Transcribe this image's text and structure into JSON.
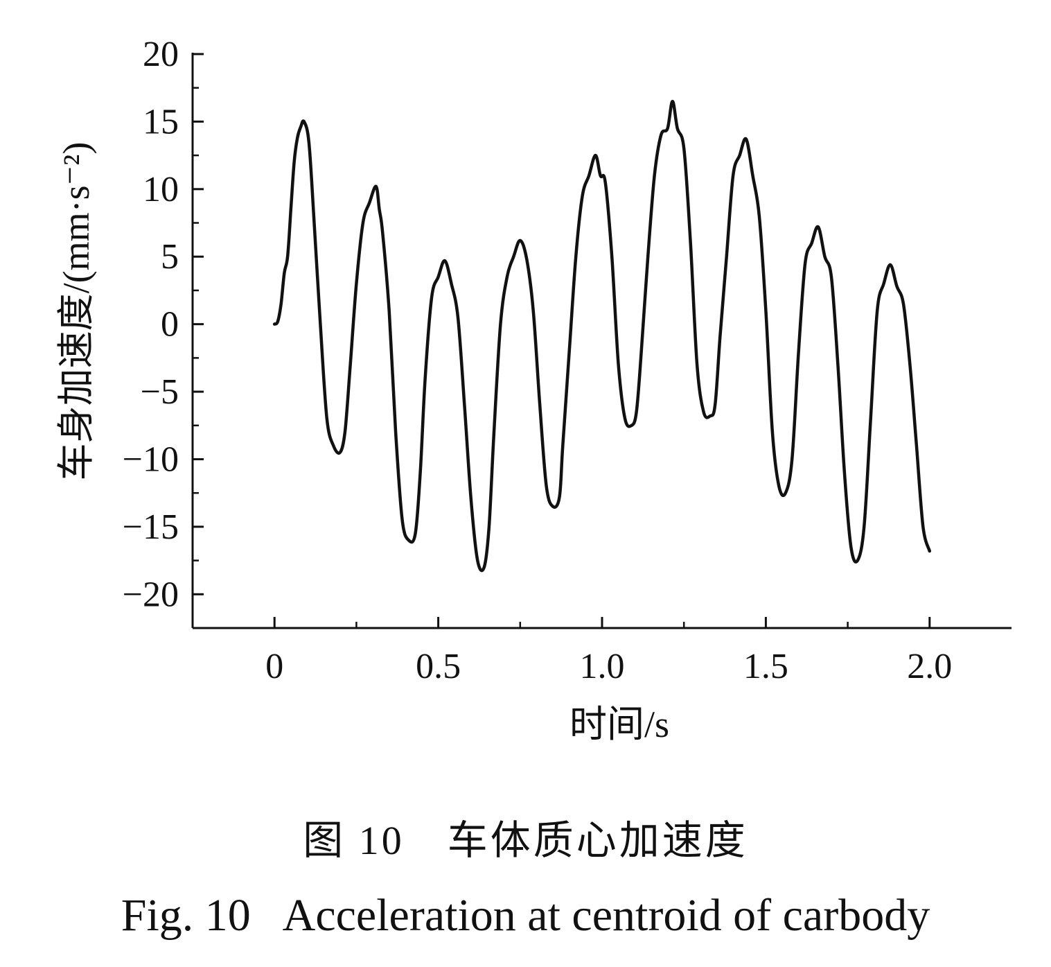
{
  "chart_data": {
    "type": "line",
    "xlabel": "时间/s",
    "ylabel": "车身加速度/(mm·s⁻²)",
    "xlim": [
      -0.25,
      2.25
    ],
    "ylim": [
      -22.5,
      20
    ],
    "x_ticks": [
      0,
      0.5,
      1.0,
      1.5,
      2.0
    ],
    "x_tick_labels": [
      "0",
      "0.5",
      "1.0",
      "1.5",
      "2.0"
    ],
    "y_ticks": [
      20,
      15,
      10,
      5,
      0,
      -5,
      -10,
      -15,
      -20
    ],
    "y_tick_labels": [
      "20",
      "15",
      "10",
      "5",
      "0",
      "−5",
      "−10",
      "−15",
      "−20"
    ],
    "grid": false,
    "line_color": "#111111",
    "series": [
      {
        "x": [
          0,
          0.01,
          0.02,
          0.03,
          0.04,
          0.05,
          0.06,
          0.07,
          0.08,
          0.09,
          0.105,
          0.12,
          0.14,
          0.16,
          0.18,
          0.2,
          0.215,
          0.23,
          0.25,
          0.27,
          0.29,
          0.31,
          0.32,
          0.33,
          0.35,
          0.37,
          0.39,
          0.41,
          0.43,
          0.445,
          0.46,
          0.48,
          0.5,
          0.52,
          0.54,
          0.56,
          0.58,
          0.6,
          0.62,
          0.64,
          0.655,
          0.67,
          0.69,
          0.71,
          0.73,
          0.75,
          0.77,
          0.79,
          0.81,
          0.83,
          0.85,
          0.87,
          0.88,
          0.9,
          0.92,
          0.94,
          0.96,
          0.98,
          0.995,
          1.01,
          1.03,
          1.05,
          1.07,
          1.09,
          1.105,
          1.12,
          1.14,
          1.16,
          1.18,
          1.2,
          1.215,
          1.23,
          1.25,
          1.27,
          1.29,
          1.31,
          1.33,
          1.345,
          1.36,
          1.38,
          1.4,
          1.42,
          1.44,
          1.46,
          1.48,
          1.5,
          1.52,
          1.54,
          1.56,
          1.58,
          1.6,
          1.62,
          1.64,
          1.66,
          1.68,
          1.7,
          1.72,
          1.74,
          1.76,
          1.78,
          1.8,
          1.82,
          1.84,
          1.86,
          1.88,
          1.9,
          1.92,
          1.94,
          1.96,
          1.98,
          2.0
        ],
        "y": [
          0,
          0.2,
          1.5,
          3.8,
          5.0,
          8.5,
          12.0,
          13.8,
          14.6,
          15.0,
          13.5,
          8.0,
          0.0,
          -7.0,
          -9.0,
          -9.5,
          -8.0,
          -3.5,
          3.0,
          7.5,
          9.0,
          10.2,
          8.5,
          6.8,
          1.0,
          -8.0,
          -14.5,
          -16.0,
          -15.5,
          -11.0,
          -4.0,
          2.0,
          3.5,
          4.7,
          3.0,
          0.5,
          -6.0,
          -13.0,
          -17.5,
          -18.0,
          -15.0,
          -8.0,
          0.0,
          3.5,
          5.0,
          6.2,
          4.8,
          1.0,
          -6.0,
          -12.0,
          -13.5,
          -12.8,
          -9.0,
          -2.0,
          5.0,
          9.5,
          11.0,
          12.5,
          11.0,
          10.5,
          5.0,
          -3.0,
          -7.0,
          -7.5,
          -6.5,
          -2.0,
          5.0,
          11.0,
          14.0,
          14.5,
          16.5,
          14.5,
          13.0,
          6.0,
          -3.0,
          -6.5,
          -6.8,
          -6.0,
          -1.0,
          5.0,
          11.0,
          12.5,
          13.7,
          11.0,
          8.0,
          1.0,
          -8.0,
          -12.0,
          -12.5,
          -10.0,
          -2.0,
          4.5,
          6.0,
          7.2,
          5.0,
          3.5,
          -3.0,
          -11.0,
          -16.5,
          -17.5,
          -15.0,
          -7.0,
          1.0,
          3.0,
          4.4,
          2.8,
          1.5,
          -3.0,
          -9.0,
          -15.0,
          -16.8
        ]
      }
    ]
  },
  "caption": {
    "cn": "图 10　车体质心加速度",
    "en": "Fig. 10  Acceleration at centroid of carbody"
  }
}
